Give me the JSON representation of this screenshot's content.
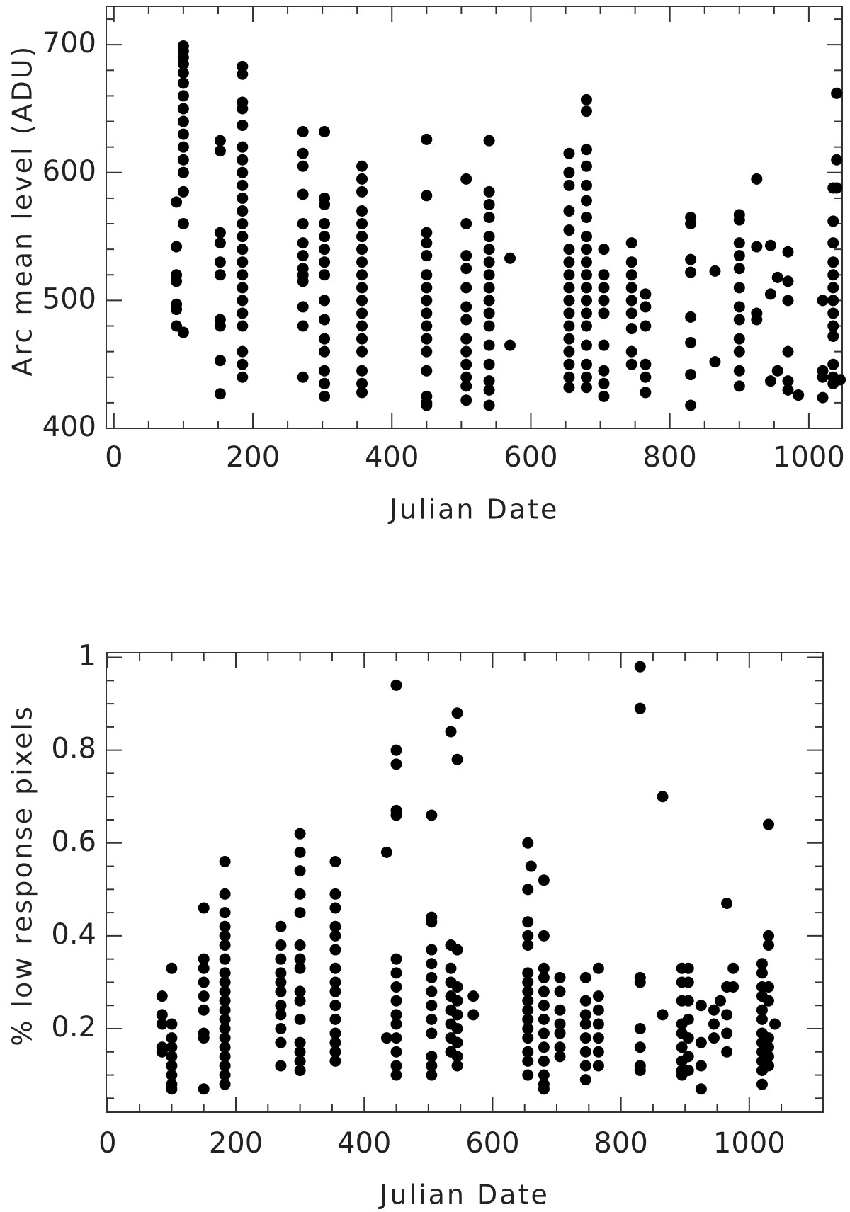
{
  "chart_data": [
    {
      "type": "scatter",
      "xlabel": "Julian Date",
      "ylabel": "Arc mean level (ADU)",
      "color": "#000000",
      "xlim": [
        -11,
        1048
      ],
      "ylim": [
        400,
        730
      ],
      "xticks": [
        0,
        200,
        400,
        600,
        800,
        1000
      ],
      "yticks": [
        400,
        500,
        600,
        700
      ],
      "xminor": [
        50,
        100,
        150,
        250,
        300,
        350,
        450,
        500,
        550,
        650,
        700,
        750,
        850,
        900,
        950
      ],
      "yminor": [
        420,
        440,
        460,
        480,
        520,
        540,
        560,
        580,
        620,
        640,
        660,
        680,
        720
      ],
      "x": [
        90,
        90,
        90,
        90,
        90,
        90,
        90,
        100,
        100,
        100,
        100,
        100,
        100,
        100,
        100,
        100,
        100,
        100,
        100,
        100,
        100,
        100,
        100,
        153,
        153,
        153,
        153,
        153,
        153,
        153,
        153,
        153,
        153,
        185,
        185,
        185,
        185,
        185,
        185,
        185,
        185,
        185,
        185,
        185,
        185,
        185,
        185,
        185,
        185,
        185,
        185,
        185,
        185,
        185,
        185,
        185,
        272,
        272,
        272,
        272,
        272,
        272,
        272,
        272,
        272,
        272,
        272,
        272,
        272,
        303,
        303,
        303,
        303,
        303,
        303,
        303,
        303,
        303,
        303,
        303,
        303,
        303,
        303,
        303,
        357,
        357,
        357,
        357,
        357,
        357,
        357,
        357,
        357,
        357,
        357,
        357,
        357,
        357,
        357,
        357,
        357,
        357,
        450,
        450,
        450,
        450,
        450,
        450,
        450,
        450,
        450,
        450,
        450,
        450,
        450,
        450,
        450,
        450,
        507,
        507,
        507,
        507,
        507,
        507,
        507,
        507,
        507,
        507,
        507,
        507,
        507,
        540,
        540,
        540,
        540,
        540,
        540,
        540,
        540,
        540,
        540,
        540,
        540,
        540,
        540,
        540,
        540,
        540,
        570,
        570,
        655,
        655,
        655,
        655,
        655,
        655,
        655,
        655,
        655,
        655,
        655,
        655,
        655,
        655,
        655,
        655,
        655,
        680,
        680,
        680,
        680,
        680,
        680,
        680,
        680,
        680,
        680,
        680,
        680,
        680,
        680,
        680,
        680,
        680,
        680,
        680,
        705,
        705,
        705,
        705,
        705,
        705,
        705,
        705,
        705,
        745,
        745,
        745,
        745,
        745,
        745,
        745,
        745,
        745,
        765,
        765,
        765,
        765,
        765,
        765,
        830,
        830,
        830,
        830,
        830,
        830,
        830,
        830,
        865,
        865,
        900,
        900,
        900,
        900,
        900,
        900,
        900,
        900,
        900,
        900,
        900,
        900,
        925,
        925,
        925,
        925,
        945,
        945,
        945,
        955,
        955,
        970,
        970,
        970,
        970,
        970,
        970,
        985,
        1020,
        1020,
        1020,
        1020,
        1035,
        1035,
        1035,
        1035,
        1035,
        1035,
        1035,
        1035,
        1035,
        1035,
        1035,
        1035,
        1035,
        1040,
        1040,
        1040,
        1045
      ],
      "values": [
        577,
        542,
        520,
        515,
        497,
        493,
        480,
        699,
        695,
        690,
        685,
        678,
        670,
        660,
        650,
        640,
        630,
        620,
        610,
        600,
        585,
        560,
        475,
        625,
        617,
        553,
        545,
        530,
        520,
        485,
        480,
        453,
        427,
        683,
        677,
        655,
        650,
        637,
        620,
        610,
        600,
        590,
        580,
        570,
        560,
        550,
        540,
        530,
        520,
        510,
        500,
        490,
        480,
        460,
        450,
        440,
        632,
        615,
        605,
        583,
        560,
        545,
        535,
        525,
        520,
        515,
        495,
        480,
        440,
        632,
        580,
        575,
        560,
        550,
        540,
        530,
        520,
        500,
        485,
        470,
        460,
        445,
        435,
        425,
        605,
        595,
        585,
        570,
        560,
        550,
        540,
        530,
        520,
        510,
        500,
        490,
        480,
        470,
        460,
        445,
        435,
        428,
        626,
        582,
        553,
        545,
        535,
        520,
        510,
        500,
        490,
        480,
        470,
        460,
        445,
        425,
        420,
        418,
        595,
        560,
        535,
        525,
        510,
        495,
        485,
        470,
        460,
        450,
        440,
        433,
        422,
        625,
        585,
        575,
        565,
        550,
        540,
        530,
        520,
        510,
        500,
        490,
        480,
        465,
        450,
        437,
        430,
        418,
        533,
        465,
        615,
        600,
        590,
        570,
        555,
        540,
        530,
        520,
        510,
        500,
        490,
        480,
        470,
        460,
        450,
        440,
        432,
        657,
        648,
        618,
        605,
        590,
        578,
        565,
        550,
        540,
        530,
        520,
        510,
        500,
        490,
        480,
        465,
        450,
        440,
        432,
        540,
        520,
        510,
        500,
        490,
        465,
        445,
        435,
        425,
        545,
        530,
        520,
        510,
        500,
        490,
        478,
        460,
        450,
        505,
        495,
        480,
        450,
        440,
        428,
        565,
        560,
        532,
        522,
        487,
        467,
        442,
        418,
        523,
        452,
        567,
        563,
        545,
        535,
        525,
        510,
        495,
        485,
        470,
        460,
        445,
        433,
        595,
        542,
        490,
        485,
        543,
        505,
        437,
        518,
        445,
        538,
        515,
        500,
        460,
        437,
        430,
        426,
        500,
        445,
        440,
        424,
        588,
        562,
        545,
        530,
        520,
        510,
        500,
        490,
        480,
        472,
        450,
        440,
        435,
        662,
        610,
        588,
        438
      ]
    },
    {
      "type": "scatter",
      "xlabel": "Julian Date",
      "ylabel": "% low response pixels",
      "color": "#000000",
      "xlim": [
        -2,
        1115
      ],
      "ylim": [
        0.02,
        1.01
      ],
      "xticks": [
        0,
        200,
        400,
        600,
        800,
        1000
      ],
      "yticks": [
        0.2,
        0.4,
        0.6,
        0.8,
        1
      ],
      "xminor": [
        50,
        100,
        150,
        250,
        300,
        350,
        450,
        500,
        550,
        650,
        700,
        750,
        850,
        900,
        950,
        1050
      ],
      "yminor": [
        0.05,
        0.1,
        0.15,
        0.25,
        0.3,
        0.35,
        0.45,
        0.5,
        0.55,
        0.65,
        0.7,
        0.75,
        0.85,
        0.9,
        0.95
      ],
      "x": [
        85,
        85,
        85,
        85,
        85,
        100,
        100,
        100,
        100,
        100,
        100,
        100,
        100,
        100,
        150,
        150,
        150,
        150,
        150,
        150,
        150,
        150,
        150,
        183,
        183,
        183,
        183,
        183,
        183,
        183,
        183,
        183,
        183,
        183,
        183,
        183,
        183,
        183,
        183,
        183,
        183,
        183,
        183,
        270,
        270,
        270,
        270,
        270,
        270,
        270,
        270,
        270,
        270,
        270,
        300,
        300,
        300,
        300,
        300,
        300,
        300,
        300,
        300,
        300,
        300,
        300,
        300,
        300,
        300,
        355,
        355,
        355,
        355,
        355,
        355,
        355,
        355,
        355,
        355,
        355,
        355,
        355,
        355,
        355,
        435,
        435,
        450,
        450,
        450,
        450,
        450,
        450,
        450,
        450,
        450,
        450,
        450,
        450,
        450,
        450,
        450,
        505,
        505,
        505,
        505,
        505,
        505,
        505,
        505,
        505,
        505,
        505,
        505,
        505,
        535,
        535,
        535,
        535,
        535,
        535,
        535,
        535,
        535,
        545,
        545,
        545,
        545,
        545,
        545,
        545,
        545,
        545,
        545,
        570,
        570,
        655,
        655,
        655,
        655,
        655,
        655,
        655,
        655,
        655,
        655,
        655,
        655,
        655,
        655,
        655,
        655,
        660,
        680,
        680,
        680,
        680,
        680,
        680,
        680,
        680,
        680,
        680,
        680,
        680,
        680,
        705,
        705,
        705,
        705,
        705,
        705,
        705,
        745,
        745,
        745,
        745,
        745,
        745,
        745,
        745,
        765,
        765,
        765,
        765,
        765,
        765,
        765,
        830,
        830,
        830,
        830,
        830,
        830,
        830,
        830,
        865,
        865,
        895,
        895,
        895,
        895,
        895,
        895,
        895,
        895,
        895,
        905,
        905,
        905,
        905,
        905,
        905,
        905,
        925,
        925,
        925,
        925,
        945,
        945,
        945,
        955,
        965,
        965,
        965,
        965,
        965,
        975,
        975,
        1020,
        1020,
        1020,
        1020,
        1020,
        1020,
        1020,
        1020,
        1020,
        1020,
        1020,
        1020,
        1030,
        1030,
        1030,
        1030,
        1030,
        1030,
        1030,
        1030,
        1030,
        1040
      ],
      "values": [
        0.27,
        0.23,
        0.21,
        0.16,
        0.15,
        0.33,
        0.21,
        0.18,
        0.16,
        0.14,
        0.12,
        0.1,
        0.08,
        0.07,
        0.46,
        0.35,
        0.33,
        0.3,
        0.27,
        0.24,
        0.19,
        0.18,
        0.07,
        0.56,
        0.49,
        0.45,
        0.42,
        0.4,
        0.38,
        0.35,
        0.32,
        0.3,
        0.28,
        0.26,
        0.24,
        0.22,
        0.2,
        0.18,
        0.16,
        0.14,
        0.12,
        0.1,
        0.08,
        0.42,
        0.38,
        0.35,
        0.32,
        0.3,
        0.28,
        0.25,
        0.23,
        0.2,
        0.17,
        0.12,
        0.62,
        0.58,
        0.54,
        0.49,
        0.45,
        0.38,
        0.35,
        0.33,
        0.28,
        0.26,
        0.22,
        0.17,
        0.15,
        0.13,
        0.11,
        0.56,
        0.49,
        0.46,
        0.42,
        0.4,
        0.37,
        0.33,
        0.3,
        0.28,
        0.25,
        0.22,
        0.19,
        0.17,
        0.15,
        0.13,
        0.58,
        0.18,
        0.94,
        0.8,
        0.77,
        0.67,
        0.66,
        0.35,
        0.32,
        0.29,
        0.26,
        0.23,
        0.21,
        0.18,
        0.15,
        0.12,
        0.1,
        0.66,
        0.44,
        0.43,
        0.37,
        0.34,
        0.31,
        0.28,
        0.25,
        0.22,
        0.19,
        0.14,
        0.12,
        0.1,
        0.84,
        0.38,
        0.33,
        0.3,
        0.27,
        0.24,
        0.21,
        0.18,
        0.15,
        0.88,
        0.78,
        0.37,
        0.29,
        0.26,
        0.23,
        0.2,
        0.17,
        0.14,
        0.12,
        0.27,
        0.23,
        0.6,
        0.5,
        0.43,
        0.4,
        0.38,
        0.32,
        0.3,
        0.28,
        0.26,
        0.24,
        0.22,
        0.2,
        0.18,
        0.15,
        0.13,
        0.1,
        0.55,
        0.52,
        0.4,
        0.33,
        0.31,
        0.28,
        0.25,
        0.22,
        0.19,
        0.16,
        0.13,
        0.1,
        0.08,
        0.07,
        0.31,
        0.28,
        0.24,
        0.21,
        0.19,
        0.16,
        0.14,
        0.31,
        0.26,
        0.23,
        0.21,
        0.18,
        0.15,
        0.12,
        0.09,
        0.33,
        0.27,
        0.24,
        0.21,
        0.18,
        0.15,
        0.12,
        0.98,
        0.89,
        0.31,
        0.3,
        0.2,
        0.16,
        0.12,
        0.11,
        0.7,
        0.23,
        0.33,
        0.3,
        0.26,
        0.21,
        0.19,
        0.16,
        0.13,
        0.11,
        0.1,
        0.33,
        0.3,
        0.26,
        0.22,
        0.18,
        0.14,
        0.11,
        0.25,
        0.17,
        0.12,
        0.07,
        0.24,
        0.21,
        0.18,
        0.26,
        0.47,
        0.29,
        0.23,
        0.19,
        0.15,
        0.33,
        0.29,
        0.34,
        0.32,
        0.29,
        0.27,
        0.24,
        0.22,
        0.19,
        0.17,
        0.15,
        0.13,
        0.11,
        0.08,
        0.64,
        0.4,
        0.38,
        0.29,
        0.26,
        0.18,
        0.16,
        0.14,
        0.12,
        0.21
      ]
    }
  ]
}
